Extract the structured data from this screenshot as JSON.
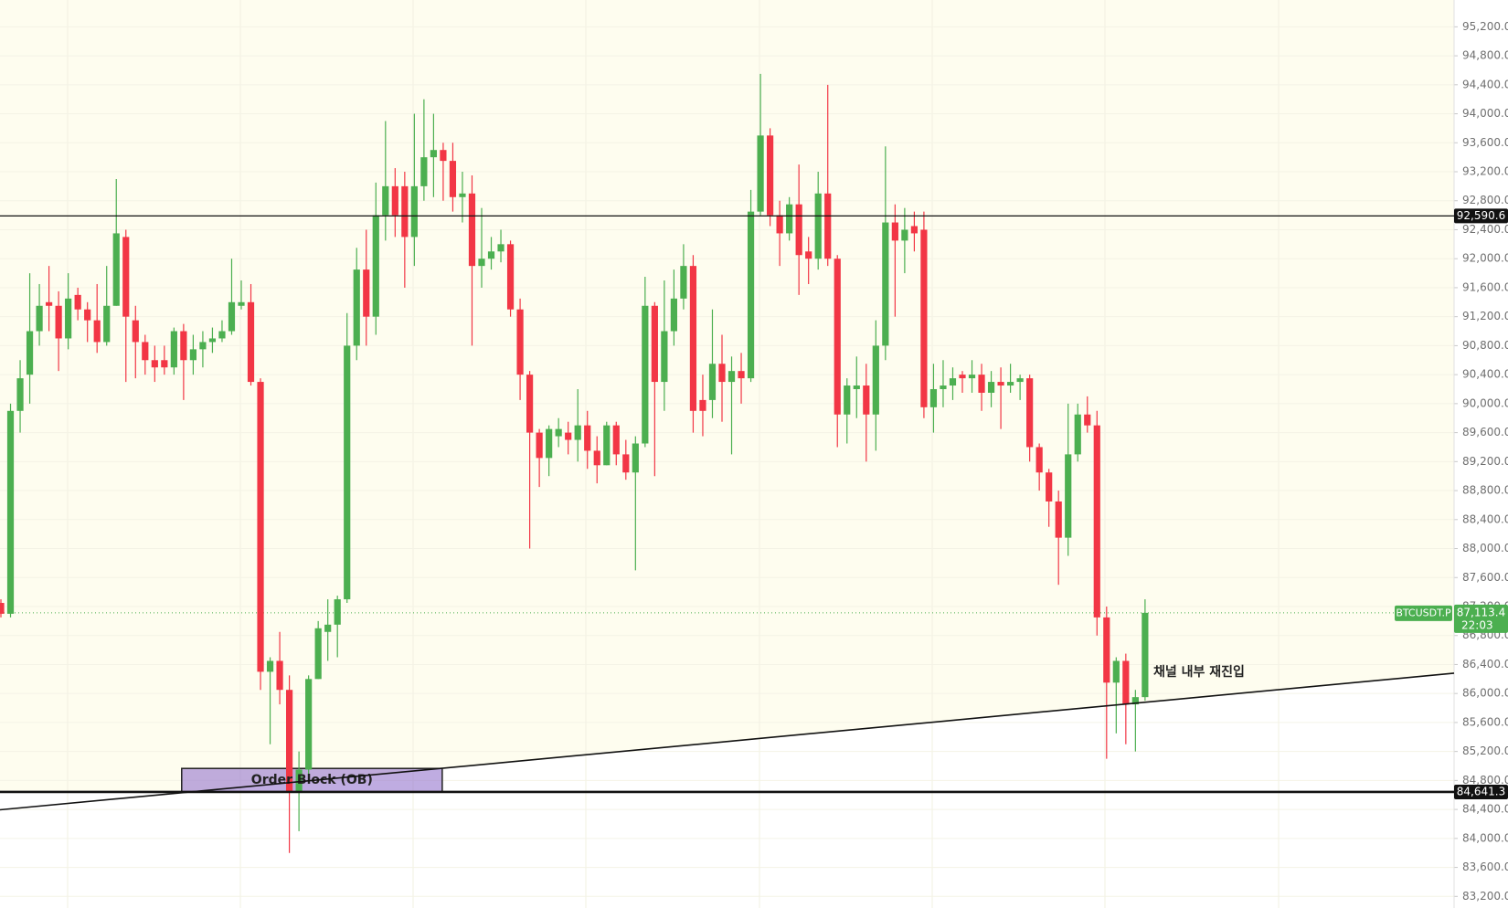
{
  "chart_data": {
    "type": "candlestick",
    "series": [
      {
        "name": "BTCUSDT.P",
        "up_color": "#4caf50",
        "down_color": "#f23645",
        "open": [
          87250,
          87100,
          89900,
          90400,
          91000,
          91400,
          91350,
          90900,
          91500,
          91300,
          91150,
          90850,
          91350,
          92300,
          91150,
          90850,
          90600,
          90600,
          90500,
          91000,
          90600,
          90750,
          90850,
          90900,
          91000,
          91350,
          91400,
          90300,
          86300,
          86450,
          86050,
          84650,
          84950,
          86200,
          86850,
          86950,
          87300,
          90800,
          91850,
          91200,
          92600,
          93000,
          93000,
          92300,
          93000,
          93400,
          93500,
          93350,
          92850,
          92900,
          91900,
          92000,
          92100,
          92200,
          91300,
          90400,
          89600,
          89250,
          89550,
          89600,
          89500,
          89700,
          89350,
          89150,
          89700,
          89300,
          89050,
          89450,
          91350,
          90300,
          91000,
          91450,
          91900,
          90050,
          90050,
          90550,
          90300,
          90450,
          90350,
          92650,
          93700,
          92600,
          92350,
          92750,
          92100,
          92000,
          92900,
          92000,
          89850,
          90200,
          90250,
          89850,
          90800,
          92500,
          92250,
          92450,
          92400,
          89950,
          90200,
          90250,
          90400,
          90350,
          90400,
          90150,
          90300,
          90250,
          90300,
          90350,
          89400,
          89050,
          88650,
          88150,
          89300,
          89850,
          89700,
          87050,
          86150,
          86450,
          85850,
          85950
        ],
        "high": [
          87300,
          90000,
          90600,
          91800,
          91650,
          91900,
          91550,
          91800,
          91600,
          91400,
          91650,
          91900,
          93100,
          92400,
          91350,
          90950,
          90800,
          90800,
          91050,
          91100,
          90950,
          91000,
          91050,
          91150,
          92000,
          91700,
          91650,
          90350,
          86500,
          86850,
          86250,
          85200,
          86250,
          87000,
          87300,
          87350,
          91250,
          92150,
          92400,
          93050,
          93900,
          93250,
          93200,
          94000,
          94200,
          94000,
          93600,
          93600,
          93200,
          93150,
          92700,
          92300,
          92400,
          92250,
          91450,
          90450,
          89650,
          89700,
          89800,
          89750,
          90200,
          89900,
          89550,
          89750,
          89750,
          89500,
          89550,
          91750,
          91400,
          91700,
          91850,
          92200,
          92050,
          90400,
          91300,
          90950,
          90650,
          90700,
          92950,
          94550,
          93800,
          92800,
          92850,
          93300,
          92300,
          93200,
          94400,
          92050,
          90350,
          90650,
          90550,
          91150,
          93550,
          92750,
          92700,
          92650,
          92650,
          90550,
          90600,
          90500,
          90450,
          90600,
          90550,
          90450,
          90500,
          90550,
          90400,
          90400,
          89450,
          89100,
          88800,
          90000,
          90000,
          90100,
          89900,
          87200,
          86500,
          86550,
          86050,
          87300
        ],
        "low": [
          87050,
          87050,
          89600,
          90000,
          90800,
          91000,
          90450,
          90750,
          91150,
          90850,
          90700,
          90800,
          91350,
          90300,
          90350,
          90400,
          90300,
          90400,
          90400,
          90050,
          90400,
          90500,
          90700,
          90850,
          90950,
          91300,
          90250,
          86050,
          85300,
          85850,
          83800,
          84100,
          84850,
          86200,
          86450,
          86500,
          87250,
          90600,
          90800,
          90950,
          92250,
          92300,
          91600,
          91900,
          92800,
          92850,
          92800,
          92650,
          92500,
          90800,
          91600,
          91850,
          91950,
          91200,
          90050,
          88000,
          88850,
          89000,
          89400,
          89300,
          89200,
          89100,
          88900,
          89150,
          89150,
          88950,
          87700,
          89400,
          89000,
          89900,
          90800,
          91300,
          89600,
          89550,
          89800,
          89750,
          89300,
          90000,
          90300,
          92600,
          92450,
          91900,
          92250,
          91500,
          91650,
          91850,
          91900,
          89400,
          89450,
          89800,
          89200,
          89350,
          90600,
          91200,
          91800,
          92100,
          89800,
          89600,
          89950,
          90050,
          90150,
          90150,
          89900,
          89950,
          89650,
          90150,
          90050,
          89200,
          88800,
          88300,
          87500,
          87900,
          89200,
          89600,
          86800,
          85100,
          85450,
          85300,
          85200,
          85900
        ],
        "close": [
          87100,
          89900,
          90350,
          91000,
          91350,
          91350,
          90900,
          91450,
          91300,
          91150,
          90850,
          91350,
          92350,
          91200,
          90850,
          90600,
          90500,
          90500,
          91000,
          90600,
          90750,
          90850,
          90900,
          91000,
          91400,
          91400,
          90300,
          86300,
          86450,
          86050,
          84650,
          84950,
          86200,
          86900,
          86950,
          87300,
          90800,
          91850,
          91200,
          92600,
          93000,
          92600,
          92300,
          93000,
          93400,
          93500,
          93350,
          92850,
          92900,
          91900,
          92000,
          92100,
          92200,
          91300,
          90400,
          89600,
          89250,
          89650,
          89650,
          89500,
          89700,
          89350,
          89150,
          89700,
          89300,
          89050,
          89450,
          91350,
          90300,
          91000,
          91450,
          91900,
          89900,
          89900,
          90550,
          90300,
          90450,
          90350,
          92650,
          93700,
          92600,
          92350,
          92750,
          92050,
          92000,
          92900,
          92000,
          89850,
          90250,
          90250,
          89850,
          90800,
          92500,
          92250,
          92400,
          92350,
          89950,
          90200,
          90250,
          90350,
          90350,
          90400,
          90150,
          90300,
          90250,
          90300,
          90350,
          89400,
          89050,
          88650,
          88150,
          89300,
          89850,
          89700,
          87050,
          86150,
          86450,
          85850,
          85950,
          87113.4
        ]
      }
    ],
    "ylim": [
      83040,
      95570
    ],
    "yticks": [
      {
        "value": 83200,
        "label": "83,200.0"
      },
      {
        "value": 83600,
        "label": "83,600.0"
      },
      {
        "value": 84000,
        "label": "84,000.0"
      },
      {
        "value": 84400,
        "label": "84,400.0"
      },
      {
        "value": 84800,
        "label": "84,800.0"
      },
      {
        "value": 85200,
        "label": "85,200.0"
      },
      {
        "value": 85600,
        "label": "85,600.0"
      },
      {
        "value": 86000,
        "label": "86,000.0"
      },
      {
        "value": 86400,
        "label": "86,400.0"
      },
      {
        "value": 86800,
        "label": "86,800.0"
      },
      {
        "value": 87200,
        "label": "87,200.0"
      },
      {
        "value": 87600,
        "label": "87,600.0"
      },
      {
        "value": 88000,
        "label": "88,000.0"
      },
      {
        "value": 88400,
        "label": "88,400.0"
      },
      {
        "value": 88800,
        "label": "88,800.0"
      },
      {
        "value": 89200,
        "label": "89,200.0"
      },
      {
        "value": 89600,
        "label": "89,600.0"
      },
      {
        "value": 90000,
        "label": "90,000.0"
      },
      {
        "value": 90400,
        "label": "90,400.0"
      },
      {
        "value": 90800,
        "label": "90,800.0"
      },
      {
        "value": 91200,
        "label": "91,200.0"
      },
      {
        "value": 91600,
        "label": "91,600.0"
      },
      {
        "value": 92000,
        "label": "92,000.0"
      },
      {
        "value": 92400,
        "label": "92,400.0"
      },
      {
        "value": 92800,
        "label": "92,800.0"
      },
      {
        "value": 93200,
        "label": "93,200.0"
      },
      {
        "value": 93600,
        "label": "93,600.0"
      },
      {
        "value": 94000,
        "label": "94,000.0"
      },
      {
        "value": 94400,
        "label": "94,400.0"
      },
      {
        "value": 94800,
        "label": "94,800.0"
      },
      {
        "value": 95200,
        "label": "95,200.0"
      }
    ],
    "hlines": [
      {
        "value": 92590.6,
        "label": "92,590.6"
      },
      {
        "value": 84641.3,
        "label": "84,641.3"
      }
    ],
    "last_price": {
      "value": 87113.4,
      "label": "87,113.4",
      "countdown": "22:03"
    },
    "trendline": {
      "start": 84395,
      "end": 86280
    },
    "order_block": {
      "label": "Order Block (OB)",
      "top": 84966,
      "bottom": 84641.3,
      "x_start": 18.8,
      "x_end": 45.9
    },
    "annotation": "채널 내부 재진입"
  }
}
